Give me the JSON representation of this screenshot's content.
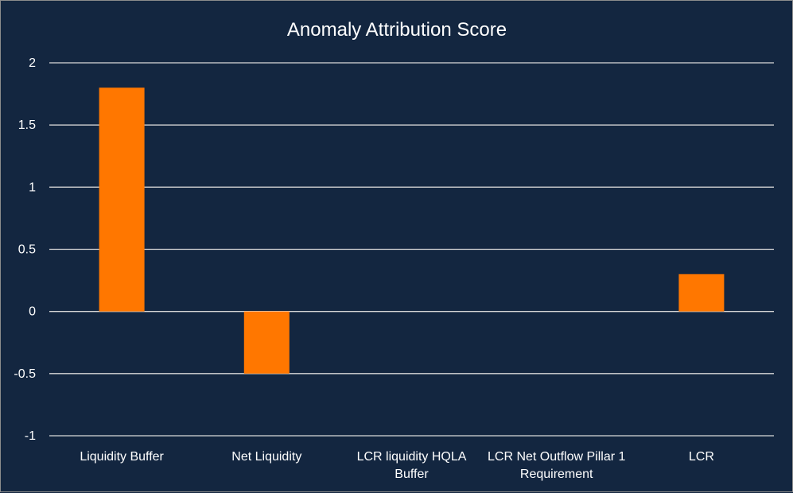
{
  "chart_data": {
    "type": "bar",
    "title": "Anomaly Attribution Score",
    "categories": [
      [
        "Liquidity Buffer"
      ],
      [
        "Net Liquidity"
      ],
      [
        "LCR liquidity HQLA",
        "Buffer"
      ],
      [
        "LCR Net Outflow Pillar 1",
        "Requirement"
      ],
      [
        "LCR"
      ]
    ],
    "values": [
      1.8,
      -0.5,
      0,
      0,
      0.3
    ],
    "ylim": [
      -1,
      2
    ],
    "yticks": [
      "2",
      "1.5",
      "1",
      "0.5",
      "0",
      "-0.5",
      "-1"
    ],
    "grid": true,
    "colors": {
      "background": "#132640",
      "bar": "#ff7700",
      "grid": "#d9d9d9",
      "text": "#ffffff"
    }
  }
}
